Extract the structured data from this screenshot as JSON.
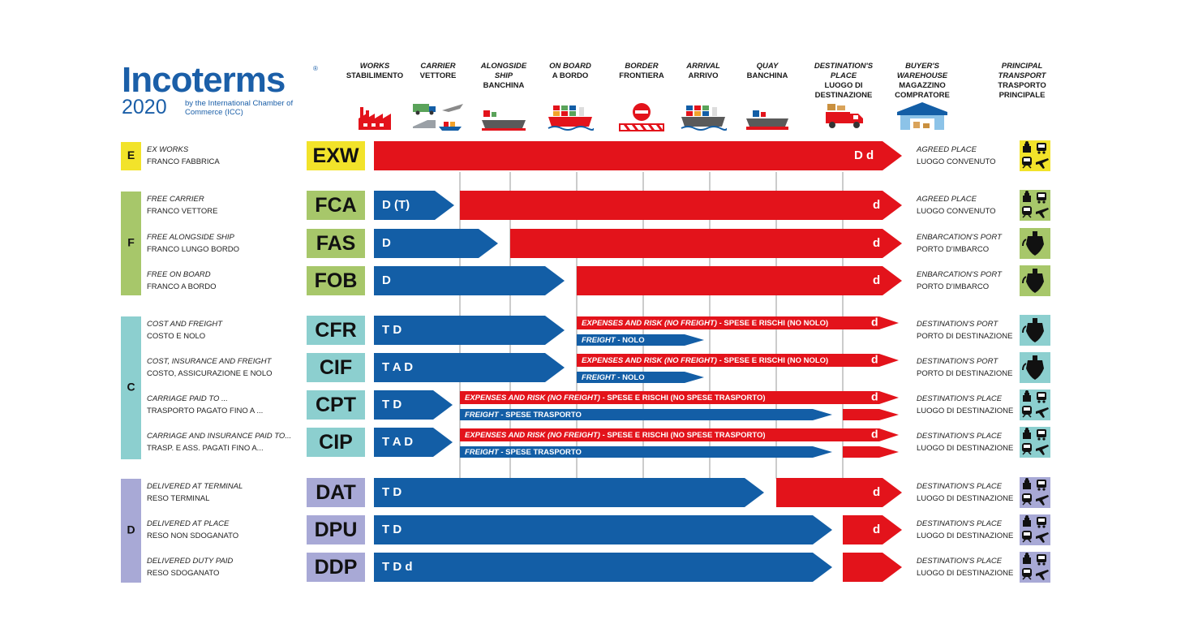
{
  "logo": {
    "word": "Incoterms",
    "year": "2020",
    "subtitle": "by the International Chamber of Commerce (ICC)",
    "reg": "®"
  },
  "columns": [
    {
      "it": "WORKS",
      "rm": "STABILIMENTO",
      "icon": "factory-icon"
    },
    {
      "it": "CARRIER",
      "rm": "VETTORE",
      "icon": "truck-plane-train-ship-icon"
    },
    {
      "it": "ALONGSIDE SHIP",
      "rm": "BANCHINA",
      "icon": "ship-alongside-icon"
    },
    {
      "it": "ON BOARD",
      "rm": "A BORDO",
      "icon": "ship-loaded-icon"
    },
    {
      "it": "BORDER",
      "rm": "FRONTIERA",
      "icon": "border-stop-icon"
    },
    {
      "it": "ARRIVAL",
      "rm": "ARRIVO",
      "icon": "ship-arrival-icon"
    },
    {
      "it": "QUAY",
      "rm": "BANCHINA",
      "icon": "quay-ship-icon"
    },
    {
      "it": "DESTINATION'S PLACE",
      "rm": "LUOGO DI DESTINAZIONE",
      "icon": "delivery-truck-icon"
    },
    {
      "it": "BUYER'S WAREHOUSE",
      "rm": "MAGAZZINO COMPRATORE",
      "icon": "warehouse-icon"
    },
    {
      "it": "PRINCIPAL TRANSPORT",
      "rm": "TRASPORTO PRINCIPALE",
      "icon": ""
    }
  ],
  "groups": [
    {
      "letter": "E",
      "color": "#f2e32a"
    },
    {
      "letter": "F",
      "color": "#a7c76a"
    },
    {
      "letter": "C",
      "color": "#8ccfcf"
    },
    {
      "letter": "D",
      "color": "#a8a9d6"
    }
  ],
  "colors": {
    "red": "#e3131b",
    "blue": "#135ea6"
  },
  "rows": [
    {
      "code": "EXW",
      "group": 0,
      "name_it": "EX WORKS",
      "name_rm": "FRANCO FABBRICA",
      "place_it": "AGREED PLACE",
      "place_rm": "LUOGO CONVENUTO",
      "transport": "all",
      "seller_label": "",
      "buyer_label": "D  d"
    },
    {
      "code": "FCA",
      "group": 1,
      "name_it": "FREE CARRIER",
      "name_rm": "FRANCO VETTORE",
      "place_it": "AGREED PLACE",
      "place_rm": "LUOGO CONVENUTO",
      "transport": "all",
      "seller_label": "D (T)",
      "buyer_label": "d"
    },
    {
      "code": "FAS",
      "group": 1,
      "name_it": "FREE ALONGSIDE SHIP",
      "name_rm": "FRANCO LUNGO BORDO",
      "place_it": "ENBARCATION'S PORT",
      "place_rm": "PORTO D'IMBARCO",
      "transport": "sea",
      "seller_label": "D",
      "buyer_label": "d"
    },
    {
      "code": "FOB",
      "group": 1,
      "name_it": "FREE ON BOARD",
      "name_rm": "FRANCO A BORDO",
      "place_it": "ENBARCATION'S PORT",
      "place_rm": "PORTO D'IMBARCO",
      "transport": "sea",
      "seller_label": "D",
      "buyer_label": "d"
    },
    {
      "code": "CFR",
      "group": 2,
      "name_it": "COST AND FREIGHT",
      "name_rm": "COSTO E NOLO",
      "place_it": "DESTINATION'S PORT",
      "place_rm": "PORTO DI DESTINAZIONE",
      "transport": "sea",
      "seller_label": "T D",
      "buyer_label": "d",
      "risk_it": "EXPENSES AND RISK (NO FREIGHT)",
      "risk_rm": " - SPESE E RISCHI (NO NOLO)",
      "freight_it": "FREIGHT",
      "freight_rm": " - NOLO"
    },
    {
      "code": "CIF",
      "group": 2,
      "name_it": "COST, INSURANCE AND FREIGHT",
      "name_rm": "COSTO, ASSICURAZIONE E NOLO",
      "place_it": "DESTINATION'S PORT",
      "place_rm": "PORTO DI DESTINAZIONE",
      "transport": "sea",
      "seller_label": "T A D",
      "buyer_label": "d",
      "risk_it": "EXPENSES AND RISK (NO FREIGHT)",
      "risk_rm": " - SPESE E RISCHI (NO NOLO)",
      "freight_it": "FREIGHT",
      "freight_rm": " - NOLO"
    },
    {
      "code": "CPT",
      "group": 2,
      "name_it": "CARRIAGE PAID TO ...",
      "name_rm": "TRASPORTO PAGATO FINO A ...",
      "place_it": "DESTINATION'S PLACE",
      "place_rm": "LUOGO DI DESTINAZIONE",
      "transport": "all",
      "seller_label": "T D",
      "buyer_label": "d",
      "risk_it": "EXPENSES AND RISK (NO FREIGHT)",
      "risk_rm": " - SPESE E RISCHI (NO SPESE TRASPORTO)",
      "freight_it": "FREIGHT",
      "freight_rm": " - SPESE TRASPORTO"
    },
    {
      "code": "CIP",
      "group": 2,
      "name_it": "CARRIAGE AND INSURANCE PAID TO...",
      "name_rm": "TRASP. E ASS. PAGATI FINO A...",
      "place_it": "DESTINATION'S PLACE",
      "place_rm": "LUOGO DI DESTINAZIONE",
      "transport": "all",
      "seller_label": "T A D",
      "buyer_label": "d",
      "risk_it": "EXPENSES AND RISK (NO FREIGHT)",
      "risk_rm": " - SPESE E RISCHI (NO SPESE TRASPORTO)",
      "freight_it": "FREIGHT",
      "freight_rm": " - SPESE TRASPORTO"
    },
    {
      "code": "DAT",
      "group": 3,
      "name_it": "DELIVERED AT TERMINAL",
      "name_rm": "RESO TERMINAL",
      "place_it": "DESTINATION'S PLACE",
      "place_rm": "LUOGO DI DESTINAZIONE",
      "transport": "all",
      "seller_label": "T D",
      "buyer_label": "d"
    },
    {
      "code": "DPU",
      "group": 3,
      "name_it": "DELIVERED AT PLACE",
      "name_rm": "RESO NON SDOGANATO",
      "place_it": "DESTINATION'S PLACE",
      "place_rm": "LUOGO DI DESTINAZIONE",
      "transport": "all",
      "seller_label": "T D",
      "buyer_label": "d"
    },
    {
      "code": "DDP",
      "group": 3,
      "name_it": "DELIVERED DUTY PAID",
      "name_rm": "RESO SDOGANATO",
      "place_it": "DESTINATION'S PLACE",
      "place_rm": "LUOGO DI DESTINAZIONE",
      "transport": "all",
      "seller_label": "T D d",
      "buyer_label": ""
    }
  ]
}
